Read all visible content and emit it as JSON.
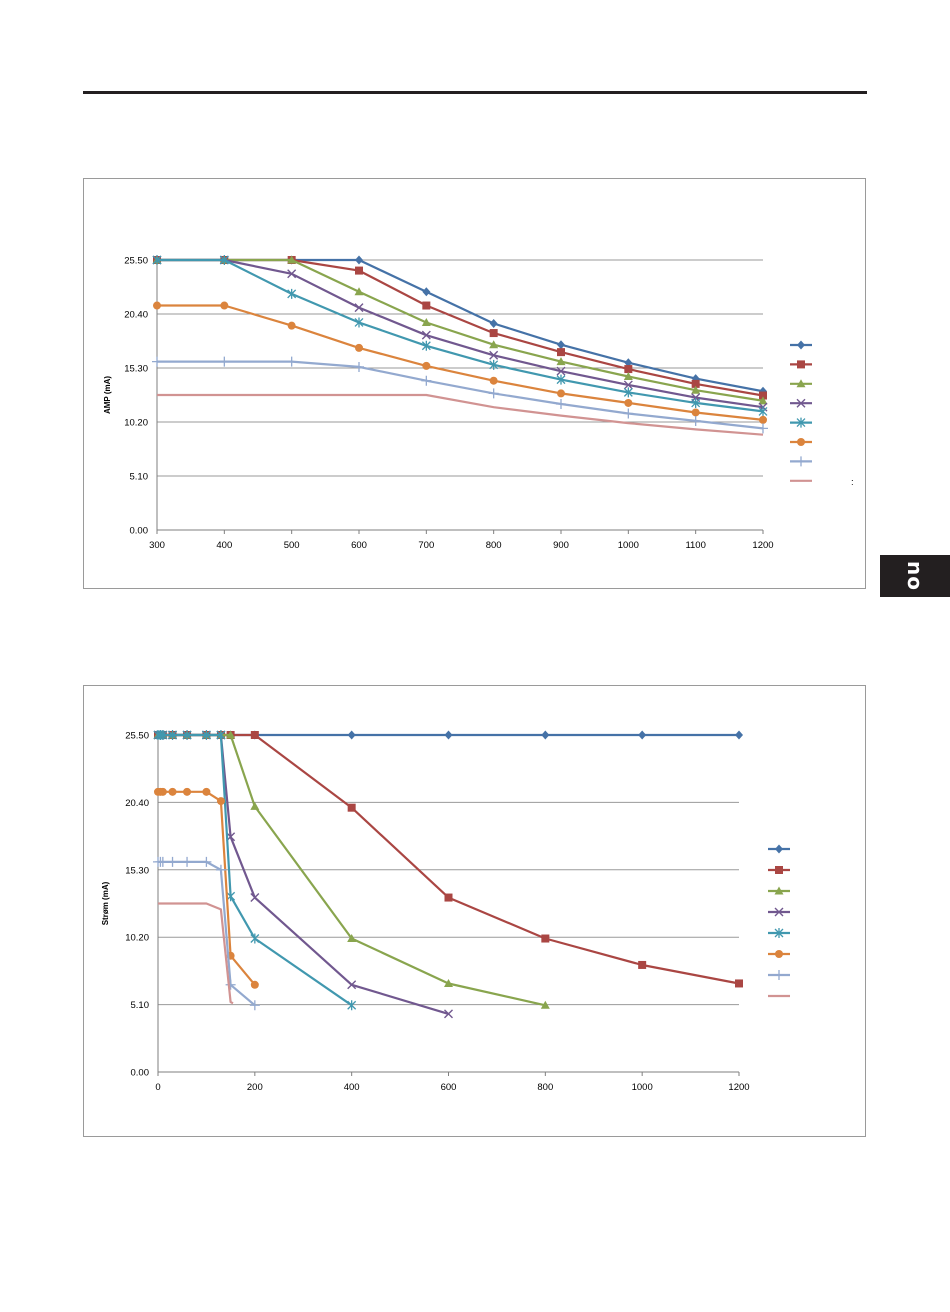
{
  "side_tab": {
    "label": "no"
  },
  "chart_data": [
    {
      "type": "line",
      "title": "",
      "xlabel": "",
      "ylabel": "AMP (mA)",
      "xlim": [
        300,
        1200
      ],
      "ylim": [
        0,
        25.5
      ],
      "x_ticks": [
        300,
        400,
        500,
        600,
        700,
        800,
        900,
        1000,
        1100,
        1200
      ],
      "x_tick_labels": [
        "300",
        "400",
        "500",
        "600",
        "700",
        "800",
        "900",
        "1000",
        "1100",
        "1200"
      ],
      "y_ticks": [
        0,
        5.1,
        10.2,
        15.3,
        20.4,
        25.5
      ],
      "y_tick_labels": [
        "0.00",
        "5.10",
        "10.20",
        "15.30",
        "20.40",
        "25.50"
      ],
      "grid": "horizontal",
      "legend": "right",
      "side_note": ":",
      "series": [
        {
          "color": "#4572a7",
          "marker": "diamond",
          "points": [
            [
              300,
              25.5
            ],
            [
              400,
              25.5
            ],
            [
              500,
              25.5
            ],
            [
              600,
              25.5
            ],
            [
              700,
              22.5
            ],
            [
              800,
              19.5
            ],
            [
              900,
              17.5
            ],
            [
              1000,
              15.8
            ],
            [
              1100,
              14.3
            ],
            [
              1200,
              13.1
            ]
          ]
        },
        {
          "color": "#aa4643",
          "marker": "square",
          "points": [
            [
              300,
              25.5
            ],
            [
              400,
              25.5
            ],
            [
              500,
              25.5
            ],
            [
              600,
              24.5
            ],
            [
              700,
              21.2
            ],
            [
              800,
              18.6
            ],
            [
              900,
              16.8
            ],
            [
              1000,
              15.2
            ],
            [
              1100,
              13.8
            ],
            [
              1200,
              12.7
            ]
          ]
        },
        {
          "color": "#89a54e",
          "marker": "triangle",
          "points": [
            [
              300,
              25.5
            ],
            [
              400,
              25.5
            ],
            [
              500,
              25.5
            ],
            [
              600,
              22.5
            ],
            [
              700,
              19.6
            ],
            [
              800,
              17.5
            ],
            [
              900,
              15.9
            ],
            [
              1000,
              14.5
            ],
            [
              1100,
              13.2
            ],
            [
              1200,
              12.2
            ]
          ]
        },
        {
          "color": "#71588f",
          "marker": "x",
          "points": [
            [
              300,
              25.5
            ],
            [
              400,
              25.5
            ],
            [
              500,
              24.2
            ],
            [
              600,
              21.0
            ],
            [
              700,
              18.4
            ],
            [
              800,
              16.5
            ],
            [
              900,
              15.0
            ],
            [
              1000,
              13.7
            ],
            [
              1100,
              12.5
            ],
            [
              1200,
              11.6
            ]
          ]
        },
        {
          "color": "#4198af",
          "marker": "asterisk",
          "points": [
            [
              300,
              25.5
            ],
            [
              400,
              25.5
            ],
            [
              500,
              22.3
            ],
            [
              600,
              19.6
            ],
            [
              700,
              17.4
            ],
            [
              800,
              15.6
            ],
            [
              900,
              14.2
            ],
            [
              1000,
              13.0
            ],
            [
              1100,
              12.0
            ],
            [
              1200,
              11.2
            ]
          ]
        },
        {
          "color": "#db843d",
          "marker": "circle",
          "points": [
            [
              300,
              21.2
            ],
            [
              400,
              21.2
            ],
            [
              500,
              19.3
            ],
            [
              600,
              17.2
            ],
            [
              700,
              15.5
            ],
            [
              800,
              14.1
            ],
            [
              900,
              12.9
            ],
            [
              1000,
              12.0
            ],
            [
              1100,
              11.1
            ],
            [
              1200,
              10.4
            ]
          ]
        },
        {
          "color": "#93a9cf",
          "marker": "plus",
          "points": [
            [
              300,
              15.9
            ],
            [
              400,
              15.9
            ],
            [
              500,
              15.9
            ],
            [
              600,
              15.4
            ],
            [
              700,
              14.1
            ],
            [
              800,
              12.9
            ],
            [
              900,
              11.9
            ],
            [
              1000,
              11.0
            ],
            [
              1100,
              10.3
            ],
            [
              1200,
              9.6
            ]
          ]
        },
        {
          "color": "#d19392",
          "marker": "none",
          "points": [
            [
              300,
              12.75
            ],
            [
              400,
              12.75
            ],
            [
              500,
              12.75
            ],
            [
              600,
              12.75
            ],
            [
              700,
              12.75
            ],
            [
              800,
              11.6
            ],
            [
              900,
              10.8
            ],
            [
              1000,
              10.1
            ],
            [
              1100,
              9.5
            ],
            [
              1200,
              9.0
            ]
          ]
        }
      ]
    },
    {
      "type": "line",
      "title": "",
      "xlabel": "",
      "ylabel": "Strøm (mA)",
      "xlim": [
        0,
        1200
      ],
      "ylim": [
        0,
        25.5
      ],
      "x_ticks": [
        0,
        200,
        400,
        600,
        800,
        1000,
        1200
      ],
      "x_tick_labels": [
        "0",
        "200",
        "400",
        "600",
        "800",
        "1000",
        "1200"
      ],
      "y_ticks": [
        0,
        5.1,
        10.2,
        15.3,
        20.4,
        25.5
      ],
      "y_tick_labels": [
        "0.00",
        "5.10",
        "10.20",
        "15.30",
        "20.40",
        "25.50"
      ],
      "grid": "horizontal",
      "legend": "right",
      "series": [
        {
          "color": "#4572a7",
          "marker": "diamond",
          "points": [
            [
              0,
              25.5
            ],
            [
              5,
              25.5
            ],
            [
              10,
              25.5
            ],
            [
              30,
              25.5
            ],
            [
              60,
              25.5
            ],
            [
              100,
              25.5
            ],
            [
              130,
              25.5
            ],
            [
              150,
              25.5
            ],
            [
              200,
              25.5
            ],
            [
              400,
              25.5
            ],
            [
              600,
              25.5
            ],
            [
              800,
              25.5
            ],
            [
              1000,
              25.5
            ],
            [
              1200,
              25.5
            ]
          ]
        },
        {
          "color": "#aa4643",
          "marker": "square",
          "points": [
            [
              0,
              25.5
            ],
            [
              5,
              25.5
            ],
            [
              10,
              25.5
            ],
            [
              30,
              25.5
            ],
            [
              60,
              25.5
            ],
            [
              100,
              25.5
            ],
            [
              130,
              25.5
            ],
            [
              150,
              25.5
            ],
            [
              200,
              25.5
            ],
            [
              400,
              20.0
            ],
            [
              600,
              13.2
            ],
            [
              800,
              10.1
            ],
            [
              1000,
              8.1
            ],
            [
              1200,
              6.7
            ]
          ]
        },
        {
          "color": "#89a54e",
          "marker": "triangle",
          "points": [
            [
              0,
              25.5
            ],
            [
              5,
              25.5
            ],
            [
              10,
              25.5
            ],
            [
              30,
              25.5
            ],
            [
              60,
              25.5
            ],
            [
              100,
              25.5
            ],
            [
              130,
              25.5
            ],
            [
              150,
              25.5
            ],
            [
              200,
              20.1
            ],
            [
              400,
              10.1
            ],
            [
              600,
              6.7
            ],
            [
              800,
              5.05
            ]
          ]
        },
        {
          "color": "#71588f",
          "marker": "x",
          "points": [
            [
              0,
              25.5
            ],
            [
              5,
              25.5
            ],
            [
              10,
              25.5
            ],
            [
              30,
              25.5
            ],
            [
              60,
              25.5
            ],
            [
              100,
              25.5
            ],
            [
              130,
              25.5
            ],
            [
              150,
              17.8
            ],
            [
              200,
              13.2
            ],
            [
              400,
              6.6
            ],
            [
              600,
              4.4
            ]
          ]
        },
        {
          "color": "#4198af",
          "marker": "asterisk",
          "points": [
            [
              0,
              25.5
            ],
            [
              5,
              25.5
            ],
            [
              10,
              25.5
            ],
            [
              30,
              25.5
            ],
            [
              60,
              25.5
            ],
            [
              100,
              25.5
            ],
            [
              130,
              25.5
            ],
            [
              150,
              13.3
            ],
            [
              200,
              10.1
            ],
            [
              400,
              5.05
            ]
          ]
        },
        {
          "color": "#db843d",
          "marker": "circle",
          "points": [
            [
              0,
              21.2
            ],
            [
              5,
              21.2
            ],
            [
              10,
              21.2
            ],
            [
              30,
              21.2
            ],
            [
              60,
              21.2
            ],
            [
              100,
              21.2
            ],
            [
              130,
              20.5
            ],
            [
              150,
              8.8
            ],
            [
              200,
              6.6
            ]
          ]
        },
        {
          "color": "#93a9cf",
          "marker": "plus",
          "points": [
            [
              0,
              15.9
            ],
            [
              5,
              15.9
            ],
            [
              10,
              15.9
            ],
            [
              30,
              15.9
            ],
            [
              60,
              15.9
            ],
            [
              100,
              15.9
            ],
            [
              130,
              15.3
            ],
            [
              150,
              6.6
            ],
            [
              200,
              5.05
            ]
          ]
        },
        {
          "color": "#d19392",
          "marker": "none",
          "points": [
            [
              0,
              12.75
            ],
            [
              100,
              12.75
            ],
            [
              130,
              12.3
            ],
            [
              150,
              5.3
            ],
            [
              155,
              5.2
            ]
          ]
        }
      ]
    }
  ]
}
